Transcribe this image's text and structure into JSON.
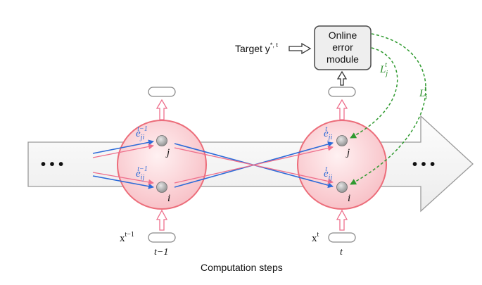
{
  "caption": "Computation steps",
  "ellipsis_left": "• • •",
  "ellipsis_right": "• • •",
  "target": {
    "label": "Target y",
    "sup": "*, t"
  },
  "error_module": {
    "line1": "Online",
    "line2": "error",
    "line3": "module"
  },
  "losses": {
    "j": {
      "base": "L",
      "sub": "j",
      "sup": "t"
    },
    "i": {
      "base": "L",
      "sub": "i",
      "sup": "t"
    }
  },
  "step_left": {
    "label": "t−1",
    "input_base": "x",
    "input_sup": "t−1",
    "node_j": "j",
    "node_i": "i",
    "trace_ji": {
      "base": "e",
      "sub": "ji",
      "sup": "t−1"
    },
    "trace_ij": {
      "base": "e",
      "sub": "ij",
      "sup": "t−1"
    }
  },
  "step_right": {
    "label": "t",
    "input_base": "x",
    "input_sup": "t",
    "node_j": "j",
    "node_i": "i",
    "trace_ji": {
      "base": "e",
      "sub": "ji",
      "sup": "t"
    },
    "trace_ij": {
      "base": "e",
      "sub": "ij",
      "sup": "t"
    }
  },
  "colors": {
    "circle_fill": "#fbd6d9",
    "circle_stroke": "#ec6d7a",
    "blue_arrow": "#2d6bd8",
    "pink_arrow": "#ee6f8c",
    "green_dashed": "#2f9a2f",
    "big_arrow_fill": "#f4f4f4",
    "big_arrow_stroke": "#9a9a9a"
  }
}
